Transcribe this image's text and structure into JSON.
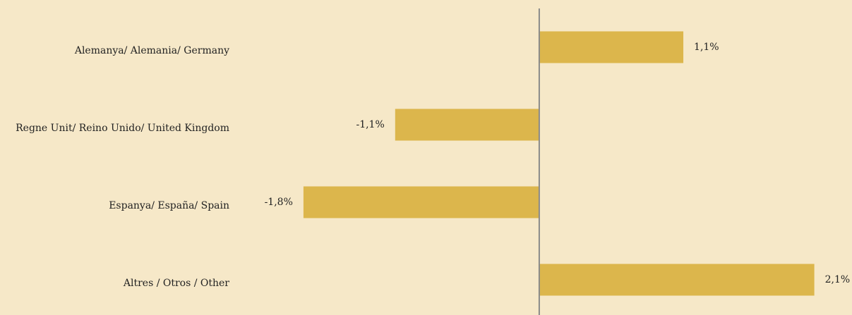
{
  "chart_data": {
    "type": "barh",
    "categories": [
      "Alemanya/ Alemania/ Germany",
      "Regne Unit/ Reino Unido/ United Kingdom",
      "Espanya/ España/ Spain",
      "Altres / Otros / Other"
    ],
    "values": [
      1.1,
      -1.1,
      -1.8,
      2.1
    ],
    "value_labels": [
      "1,1%",
      "-1,1%",
      "-1,8%",
      "2,1%"
    ],
    "color": "#dcb64c",
    "xlim": [
      -2.5,
      2.35
    ]
  }
}
